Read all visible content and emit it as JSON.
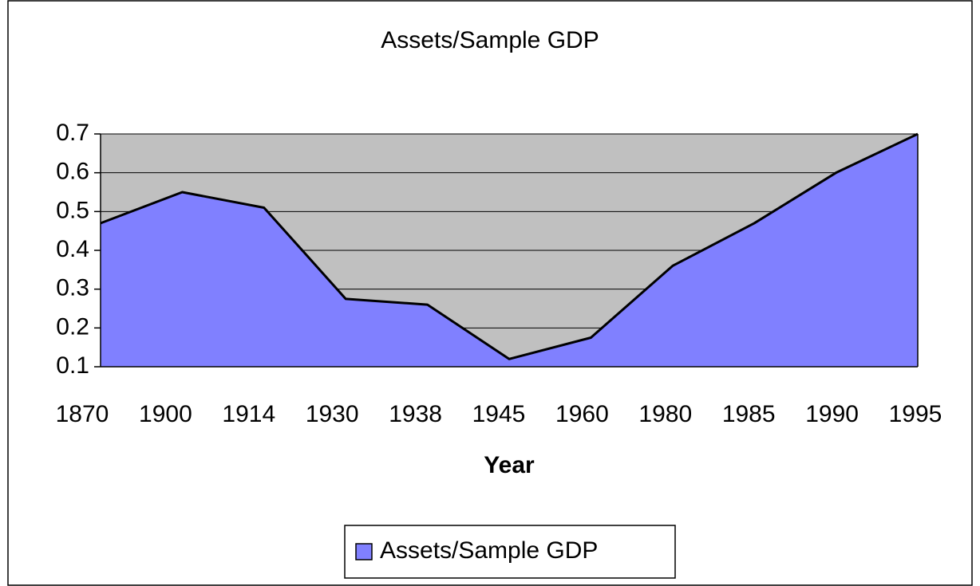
{
  "chart_data": {
    "type": "area",
    "title": "Assets/Sample GDP",
    "x_label": "Year",
    "categories": [
      "1870",
      "1900",
      "1914",
      "1930",
      "1938",
      "1945",
      "1960",
      "1980",
      "1985",
      "1990",
      "1995"
    ],
    "series": [
      {
        "name": "Assets/Sample GDP",
        "color": "#8080ff",
        "values": [
          0.47,
          0.55,
          0.51,
          0.275,
          0.26,
          0.12,
          0.175,
          0.36,
          0.47,
          0.6,
          0.7
        ]
      }
    ],
    "ylim": [
      0.1,
      0.7
    ],
    "yticks": [
      0.1,
      0.2,
      0.3,
      0.4,
      0.5,
      0.6,
      0.7
    ],
    "grid": true,
    "plot_background": "#c0c0c0",
    "legend": "bottom"
  }
}
